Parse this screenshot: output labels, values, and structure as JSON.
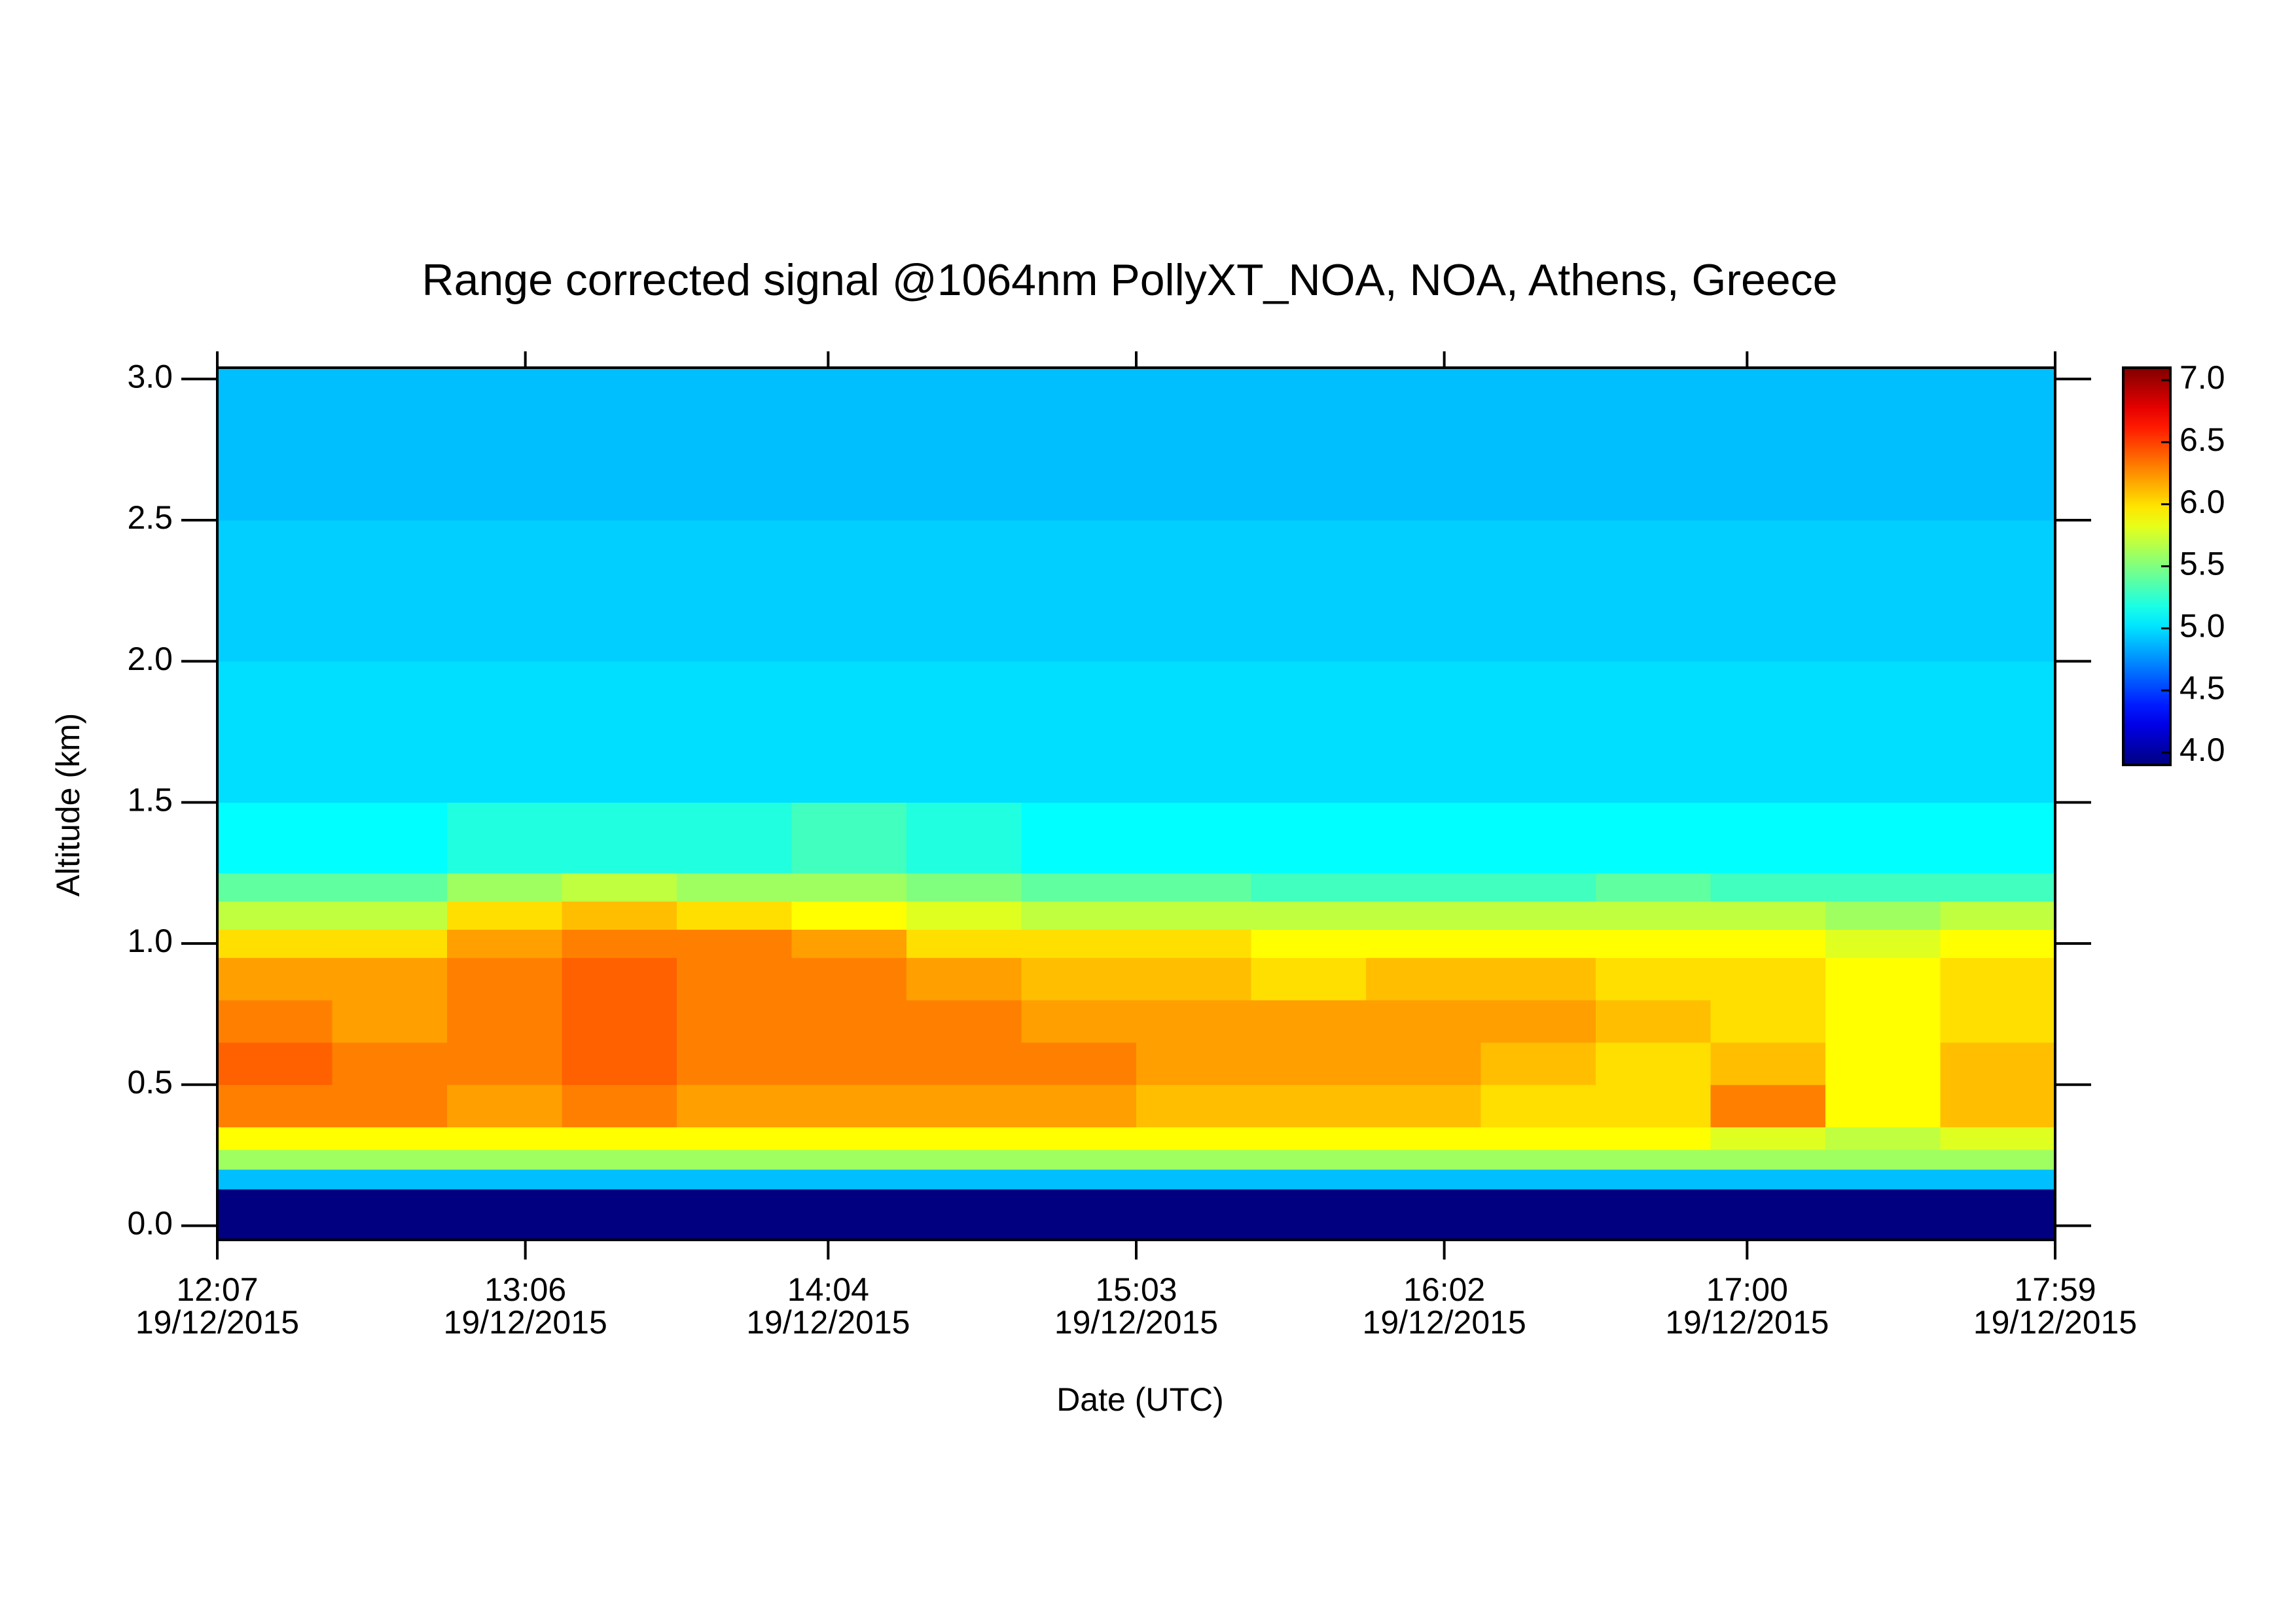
{
  "chart_data": {
    "type": "heatmap",
    "title": "Range corrected signal @1064nm  PollyXT_NOA, NOA, Athens, Greece",
    "xlabel": "Date (UTC)",
    "ylabel": "Altitude (km)",
    "x_bins": [
      "2015-12-19T12:07",
      "2015-12-19T12:29",
      "2015-12-19T12:51",
      "2015-12-19T13:13",
      "2015-12-19T13:35",
      "2015-12-19T13:57",
      "2015-12-19T14:19",
      "2015-12-19T14:41",
      "2015-12-19T15:03",
      "2015-12-19T15:25",
      "2015-12-19T15:47",
      "2015-12-19T16:09",
      "2015-12-19T16:31",
      "2015-12-19T16:53",
      "2015-12-19T17:15",
      "2015-12-19T17:37",
      "2015-12-19T17:59"
    ],
    "y_bins": [
      -0.05,
      0.13,
      0.2,
      0.27,
      0.35,
      0.5,
      0.65,
      0.8,
      0.95,
      1.05,
      1.15,
      1.25,
      1.5,
      2.0,
      2.5,
      3.04
    ],
    "values": [
      [
        3.9,
        3.9,
        3.9,
        3.9,
        3.9,
        3.9,
        3.9,
        3.9,
        3.9,
        3.9,
        3.9,
        3.9,
        3.9,
        3.9,
        3.9,
        3.9
      ],
      [
        4.9,
        4.9,
        4.9,
        4.9,
        4.9,
        4.9,
        4.9,
        4.9,
        4.9,
        4.9,
        4.9,
        4.9,
        4.9,
        4.9,
        4.9,
        4.9
      ],
      [
        5.6,
        5.6,
        5.6,
        5.6,
        5.6,
        5.6,
        5.6,
        5.6,
        5.6,
        5.6,
        5.6,
        5.6,
        5.6,
        5.6,
        5.6,
        5.6
      ],
      [
        5.9,
        5.9,
        5.9,
        5.9,
        5.9,
        5.9,
        5.9,
        5.9,
        5.9,
        5.9,
        5.9,
        5.9,
        5.9,
        5.8,
        5.7,
        5.8
      ],
      [
        6.3,
        6.3,
        6.2,
        6.3,
        6.2,
        6.2,
        6.2,
        6.2,
        6.1,
        6.1,
        6.1,
        6.0,
        6.0,
        6.3,
        5.9,
        6.1
      ],
      [
        6.4,
        6.3,
        6.3,
        6.4,
        6.3,
        6.3,
        6.3,
        6.3,
        6.2,
        6.2,
        6.2,
        6.1,
        6.0,
        6.1,
        5.9,
        6.1
      ],
      [
        6.3,
        6.2,
        6.3,
        6.4,
        6.3,
        6.3,
        6.3,
        6.2,
        6.2,
        6.2,
        6.2,
        6.2,
        6.1,
        6.0,
        5.9,
        6.0
      ],
      [
        6.2,
        6.2,
        6.3,
        6.4,
        6.3,
        6.3,
        6.2,
        6.1,
        6.1,
        6.0,
        6.1,
        6.1,
        6.0,
        6.0,
        5.9,
        6.0
      ],
      [
        6.0,
        6.0,
        6.2,
        6.3,
        6.3,
        6.2,
        6.0,
        6.0,
        6.0,
        5.9,
        5.9,
        5.9,
        5.9,
        5.9,
        5.8,
        5.9
      ],
      [
        5.7,
        5.7,
        6.0,
        6.1,
        6.0,
        5.9,
        5.8,
        5.7,
        5.7,
        5.7,
        5.7,
        5.7,
        5.7,
        5.7,
        5.6,
        5.7
      ],
      [
        5.4,
        5.4,
        5.6,
        5.7,
        5.6,
        5.6,
        5.5,
        5.4,
        5.4,
        5.3,
        5.3,
        5.3,
        5.4,
        5.3,
        5.3,
        5.3
      ],
      [
        5.1,
        5.1,
        5.2,
        5.2,
        5.2,
        5.3,
        5.2,
        5.1,
        5.1,
        5.1,
        5.1,
        5.1,
        5.1,
        5.1,
        5.1,
        5.1
      ],
      [
        5.0,
        5.0,
        5.0,
        5.0,
        5.0,
        5.0,
        5.0,
        5.0,
        5.0,
        5.0,
        5.0,
        5.0,
        5.0,
        5.0,
        5.0,
        5.0
      ],
      [
        4.95,
        4.95,
        4.95,
        4.95,
        4.95,
        4.95,
        4.95,
        4.95,
        4.95,
        4.95,
        4.95,
        4.95,
        4.95,
        4.95,
        4.95,
        4.95
      ],
      [
        4.9,
        4.9,
        4.9,
        4.9,
        4.9,
        4.9,
        4.9,
        4.9,
        4.9,
        4.9,
        4.9,
        4.9,
        4.9,
        4.9,
        4.9,
        4.9
      ]
    ],
    "xlim": [
      "2015-12-19T12:07",
      "2015-12-19T17:59"
    ],
    "xticks": [
      {
        "value": "2015-12-19T12:07",
        "label": "12:07",
        "sublabel": "19/12/2015"
      },
      {
        "value": "2015-12-19T13:06",
        "label": "13:06",
        "sublabel": "19/12/2015"
      },
      {
        "value": "2015-12-19T14:04",
        "label": "14:04",
        "sublabel": "19/12/2015"
      },
      {
        "value": "2015-12-19T15:03",
        "label": "15:03",
        "sublabel": "19/12/2015"
      },
      {
        "value": "2015-12-19T16:02",
        "label": "16:02",
        "sublabel": "19/12/2015"
      },
      {
        "value": "2015-12-19T17:00",
        "label": "17:00",
        "sublabel": "19/12/2015"
      },
      {
        "value": "2015-12-19T17:59",
        "label": "17:59",
        "sublabel": "19/12/2015"
      }
    ],
    "ylim": [
      -0.05,
      3.04
    ],
    "yticks": [
      {
        "value": 0,
        "label": "0.0"
      },
      {
        "value": 0.5,
        "label": "0.5"
      },
      {
        "value": 1,
        "label": "1.0"
      },
      {
        "value": 1.5,
        "label": "1.5"
      },
      {
        "value": 2,
        "label": "2.0"
      },
      {
        "value": 2.5,
        "label": "2.5"
      },
      {
        "value": 3,
        "label": "3.0"
      }
    ],
    "colormap": "jet",
    "zlim": [
      3.9,
      7.1
    ],
    "zticks": [
      {
        "value": 4,
        "label": "4.0"
      },
      {
        "value": 4.5,
        "label": "4.5"
      },
      {
        "value": 5,
        "label": "5.0"
      },
      {
        "value": 5.5,
        "label": "5.5"
      },
      {
        "value": 6,
        "label": "6.0"
      },
      {
        "value": 6.5,
        "label": "6.5"
      },
      {
        "value": 7,
        "label": "7.0"
      }
    ]
  }
}
